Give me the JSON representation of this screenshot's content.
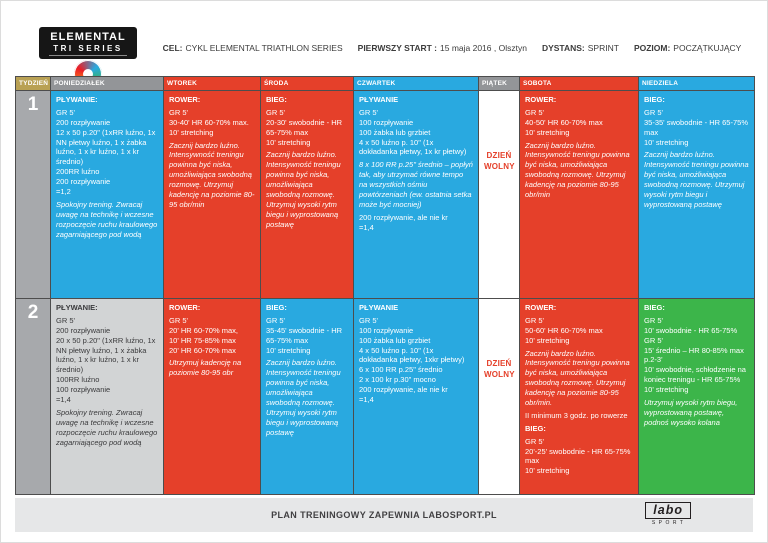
{
  "brand": {
    "line1": "ELEMENTAL",
    "line2": "TRI SERIES"
  },
  "header": {
    "items": [
      {
        "label": "CEL:",
        "value": "CYKL ELEMENTAL TRIATHLON SERIES"
      },
      {
        "label": "PIERWSZY START :",
        "value": "15 maja 2016 , Olsztyn"
      },
      {
        "label": "DYSTANS:",
        "value": "SPRINT"
      },
      {
        "label": "POZIOM:",
        "value": "POCZĄTKUJĄCY"
      }
    ]
  },
  "table": {
    "headers": [
      "TYDZIEŃ",
      "PONIEDZIAŁEK",
      "WTOREK",
      "ŚRODA",
      "CZWARTEK",
      "PIĄTEK",
      "SOBOTA",
      "NIEDZIELA"
    ]
  },
  "weeks": [
    {
      "number": "1",
      "days": [
        {
          "color": "blue",
          "blocks": [
            {
              "style": "bold",
              "text": "PŁYWANIE:"
            },
            {
              "style": "normal",
              "text": "GR 5'\n200 rozpływanie\n12 x 50 p.20\" (1xRR luźno, 1x NN płetwy luźno, 1 x żabka luźno, 1 x kr luźno, 1 x kr średnio)\n200RR luźno\n200 rozpływanie\n=1,2"
            },
            {
              "style": "italic",
              "text": "Spokojny trening. Zwracaj uwagę na technikę i wczesne rozpoczęcie ruchu kraulowego zagarniającego pod wodą"
            }
          ]
        },
        {
          "color": "red",
          "blocks": [
            {
              "style": "bold",
              "text": "ROWER:"
            },
            {
              "style": "normal",
              "text": "GR 5'\n30-40' HR 60-70% max.\n10' stretching"
            },
            {
              "style": "italic",
              "text": "Zacznij bardzo luźno. Intensywność treningu powinna być niska, umożliwiająca swobodną rozmowę. Utrzymuj kadencję na poziomie 80-95 obr/min"
            }
          ]
        },
        {
          "color": "red",
          "blocks": [
            {
              "style": "bold",
              "text": "BIEG:"
            },
            {
              "style": "normal",
              "text": "GR 5'\n20-30'  swobodnie - HR 65-75% max\n10' stretching"
            },
            {
              "style": "italic",
              "text": "Zacznij bardzo luźno. Intensywność treningu powinna być niska, umożliwiająca swobodną rozmowę. Utrzymuj wysoki rytm biegu i wyprostowaną postawę"
            }
          ]
        },
        {
          "color": "blue",
          "blocks": [
            {
              "style": "bold",
              "text": "PŁYWANIE"
            },
            {
              "style": "normal",
              "text": "GR 5'\n100 rozpływanie\n100 żabka lub grzbiet\n4 x 50 luźno p. 10\" (1x dokładanka płetwy, 1x kr płetwy)"
            },
            {
              "style": "italic",
              "text": "8 x 100 RR p.25\" średnio – popłyń tak, aby utrzymać równe tempo na wszystkich ośmiu powtórzeniach (ew. ostatnia setka może być mocniej)"
            },
            {
              "style": "normal",
              "text": "200 rozpływanie, ale nie kr\n=1,4"
            }
          ]
        },
        {
          "color": "white",
          "blocks": [
            {
              "style": "bold",
              "text": "DZIEŃ WOLNY"
            }
          ]
        },
        {
          "color": "red",
          "blocks": [
            {
              "style": "bold",
              "text": "ROWER:"
            },
            {
              "style": "normal",
              "text": "GR 5'\n40-50' HR 60-70% max\n10' stretching"
            },
            {
              "style": "italic",
              "text": "Zacznij bardzo luźno. Intensywność treningu powinna być niska, umożliwiająca swobodną rozmowę. Utrzymuj kadencję na poziomie 80-95 obr/min"
            }
          ]
        },
        {
          "color": "blue",
          "blocks": [
            {
              "style": "bold",
              "text": "BIEG:"
            },
            {
              "style": "normal",
              "text": "GR 5'\n35-35'  swobodnie - HR 65-75% max\n10' stretching"
            },
            {
              "style": "italic",
              "text": "Zacznij bardzo luźno. Intensywność treningu powinna być niska, umożliwiająca swobodną rozmowę. Utrzymuj wysoki rytm biegu i wyprostowaną postawę"
            }
          ]
        }
      ]
    },
    {
      "number": "2",
      "days": [
        {
          "color": "gray",
          "blocks": [
            {
              "style": "bold",
              "text": "PŁYWANIE:"
            },
            {
              "style": "normal",
              "text": "GR 5'\n200 rozpływanie\n20 x 50 p.20\" (1xRR luźno, 1x NN płetwy luźno, 1 x żabka luźno, 1 x kr luźno, 1 x kr średnio)\n100RR luźno\n100 rozpływanie\n=1,4"
            },
            {
              "style": "italic",
              "text": "Spokojny trening. Zwracaj uwagę na technikę i wczesne rozpoczęcie ruchu kraulowego zagarniającego pod wodą"
            }
          ]
        },
        {
          "color": "red",
          "blocks": [
            {
              "style": "bold",
              "text": "ROWER:"
            },
            {
              "style": "normal",
              "text": "GR 5'\n20' HR 60-70% max,\n10' HR 75-85% max\n20' HR 60-70% max"
            },
            {
              "style": "italic",
              "text": "Utrzymuj kadencję na poziomie 80-95 obr"
            }
          ]
        },
        {
          "color": "blue",
          "blocks": [
            {
              "style": "bold",
              "text": "BIEG:"
            },
            {
              "style": "normal",
              "text": "GR 5'\n35-45'  swobodnie - HR 65-75% max\n10' stretching"
            },
            {
              "style": "italic",
              "text": "Zacznij bardzo luźno. Intensywność treningu powinna być niska, umożliwiająca swobodną rozmowę. Utrzymuj wysoki rytm biegu i wyprostowaną postawę"
            }
          ]
        },
        {
          "color": "blue",
          "blocks": [
            {
              "style": "bold",
              "text": "PŁYWANIE"
            },
            {
              "style": "normal",
              "text": "GR 5'\n100 rozpływanie\n100 żabka lub grzbiet\n4 x 50 luźno p. 10\" (1x dokładanka płetwy, 1xkr płetwy)\n6 x 100 RR p.25\" średnio\n2 x 100 kr p.30\" mocno\n200 rozpływanie, ale nie kr\n=1,4"
            }
          ]
        },
        {
          "color": "white",
          "blocks": [
            {
              "style": "bold",
              "text": "DZIEŃ WOLNY"
            }
          ]
        },
        {
          "color": "red",
          "blocks": [
            {
              "style": "bold",
              "text": "ROWER:"
            },
            {
              "style": "normal",
              "text": "GR 5'\n50-60' HR 60-70% max\n10' stretching"
            },
            {
              "style": "italic",
              "text": "Zacznij bardzo luźno. Intensywność treningu powinna być niska, umożliwiająca swobodną rozmowę. Utrzymuj kadencję na poziomie 80-95 obr/min."
            },
            {
              "style": "normal",
              "text": "II minimum 3 godz. po rowerze"
            },
            {
              "style": "bold",
              "text": "BIEG:"
            },
            {
              "style": "normal",
              "text": "GR 5'\n20'-25'  swobodnie - HR 65-75% max\n10' stretching"
            }
          ]
        },
        {
          "color": "green",
          "blocks": [
            {
              "style": "bold",
              "text": "BIEG:"
            },
            {
              "style": "normal",
              "text": "GR 5'\n10' swobodnie - HR 65-75%\nGR 5'\n15' średnio – HR 80-85% max\np.2-3'\n10' swobodnie, schłodzenie na koniec treningu - HR 65-75%\n10' stretching"
            },
            {
              "style": "italic",
              "text": "Utrzymuj wysoki rytm biegu, wyprostowaną postawę, podnoś wysoko kolana"
            }
          ]
        }
      ]
    }
  ],
  "footer": {
    "note": "PLAN TRENINGOWY ZAPEWNIA LABOSPORT.PL",
    "logo_text": "labo",
    "logo_sub": "SPORT"
  },
  "colors": {
    "blue": "#29a9e0",
    "red": "#e5402a",
    "green": "#3cb54a",
    "week_column_gray": "#a7a9ac",
    "light_gray_cell": "#d2d4d5",
    "header_gray": "#939598",
    "header_gold": "#b9a154",
    "rest_day_text": "#e5402a"
  }
}
